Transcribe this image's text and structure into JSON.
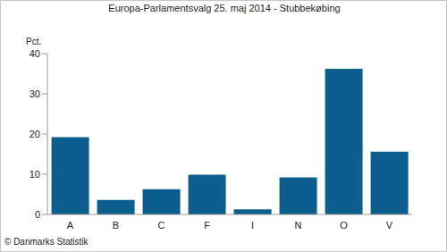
{
  "chart_data": {
    "type": "bar",
    "title": "Europa-Parlamentsvalg 25. maj 2014 - Stubbekøbing",
    "y_label": "Pct.",
    "annotation": "© Danmarks Statistik",
    "categories": [
      "A",
      "B",
      "C",
      "F",
      "I",
      "N",
      "O",
      "V"
    ],
    "values": [
      19.2,
      3.6,
      6.3,
      9.9,
      1.3,
      9.2,
      36.2,
      15.6
    ],
    "color": "#0b5e8e",
    "ylim": [
      0,
      40
    ],
    "yticks": [
      0,
      10,
      20,
      30,
      40
    ],
    "grid": false
  }
}
